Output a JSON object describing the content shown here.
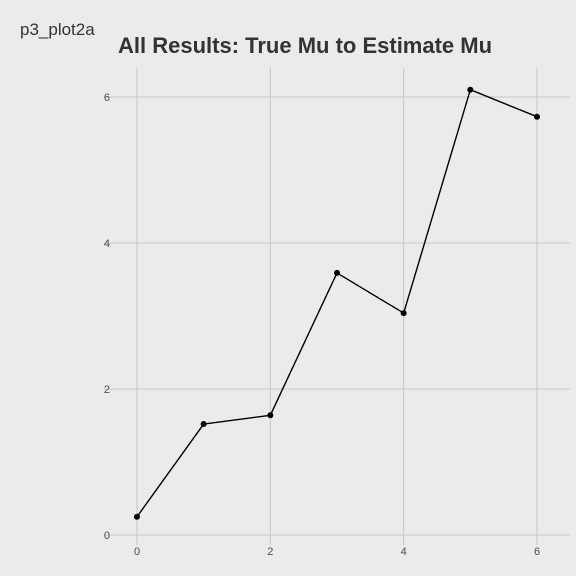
{
  "header": {
    "plot_id": "p3_plot2a"
  },
  "chart_data": {
    "type": "line",
    "title": "All Results: True Mu to Estimate Mu",
    "xlabel": "",
    "ylabel": "",
    "x": [
      0,
      1,
      2,
      3,
      4,
      5,
      6
    ],
    "y": [
      0.25,
      1.52,
      1.64,
      3.59,
      3.04,
      6.1,
      5.73
    ],
    "xlim": [
      -0.25,
      6.25
    ],
    "ylim": [
      0,
      6.3
    ],
    "x_ticks": [
      0,
      2,
      4,
      6
    ],
    "y_ticks": [
      0,
      2,
      4,
      6
    ],
    "x_tick_labels": [
      "0",
      "2",
      "4",
      "6"
    ],
    "y_tick_labels": [
      "0",
      "2",
      "4",
      "6"
    ],
    "grid": true,
    "colors": {
      "background": "#ebebeb",
      "grid": "#c8c8c8",
      "line": "#000000",
      "point": "#000000"
    }
  }
}
